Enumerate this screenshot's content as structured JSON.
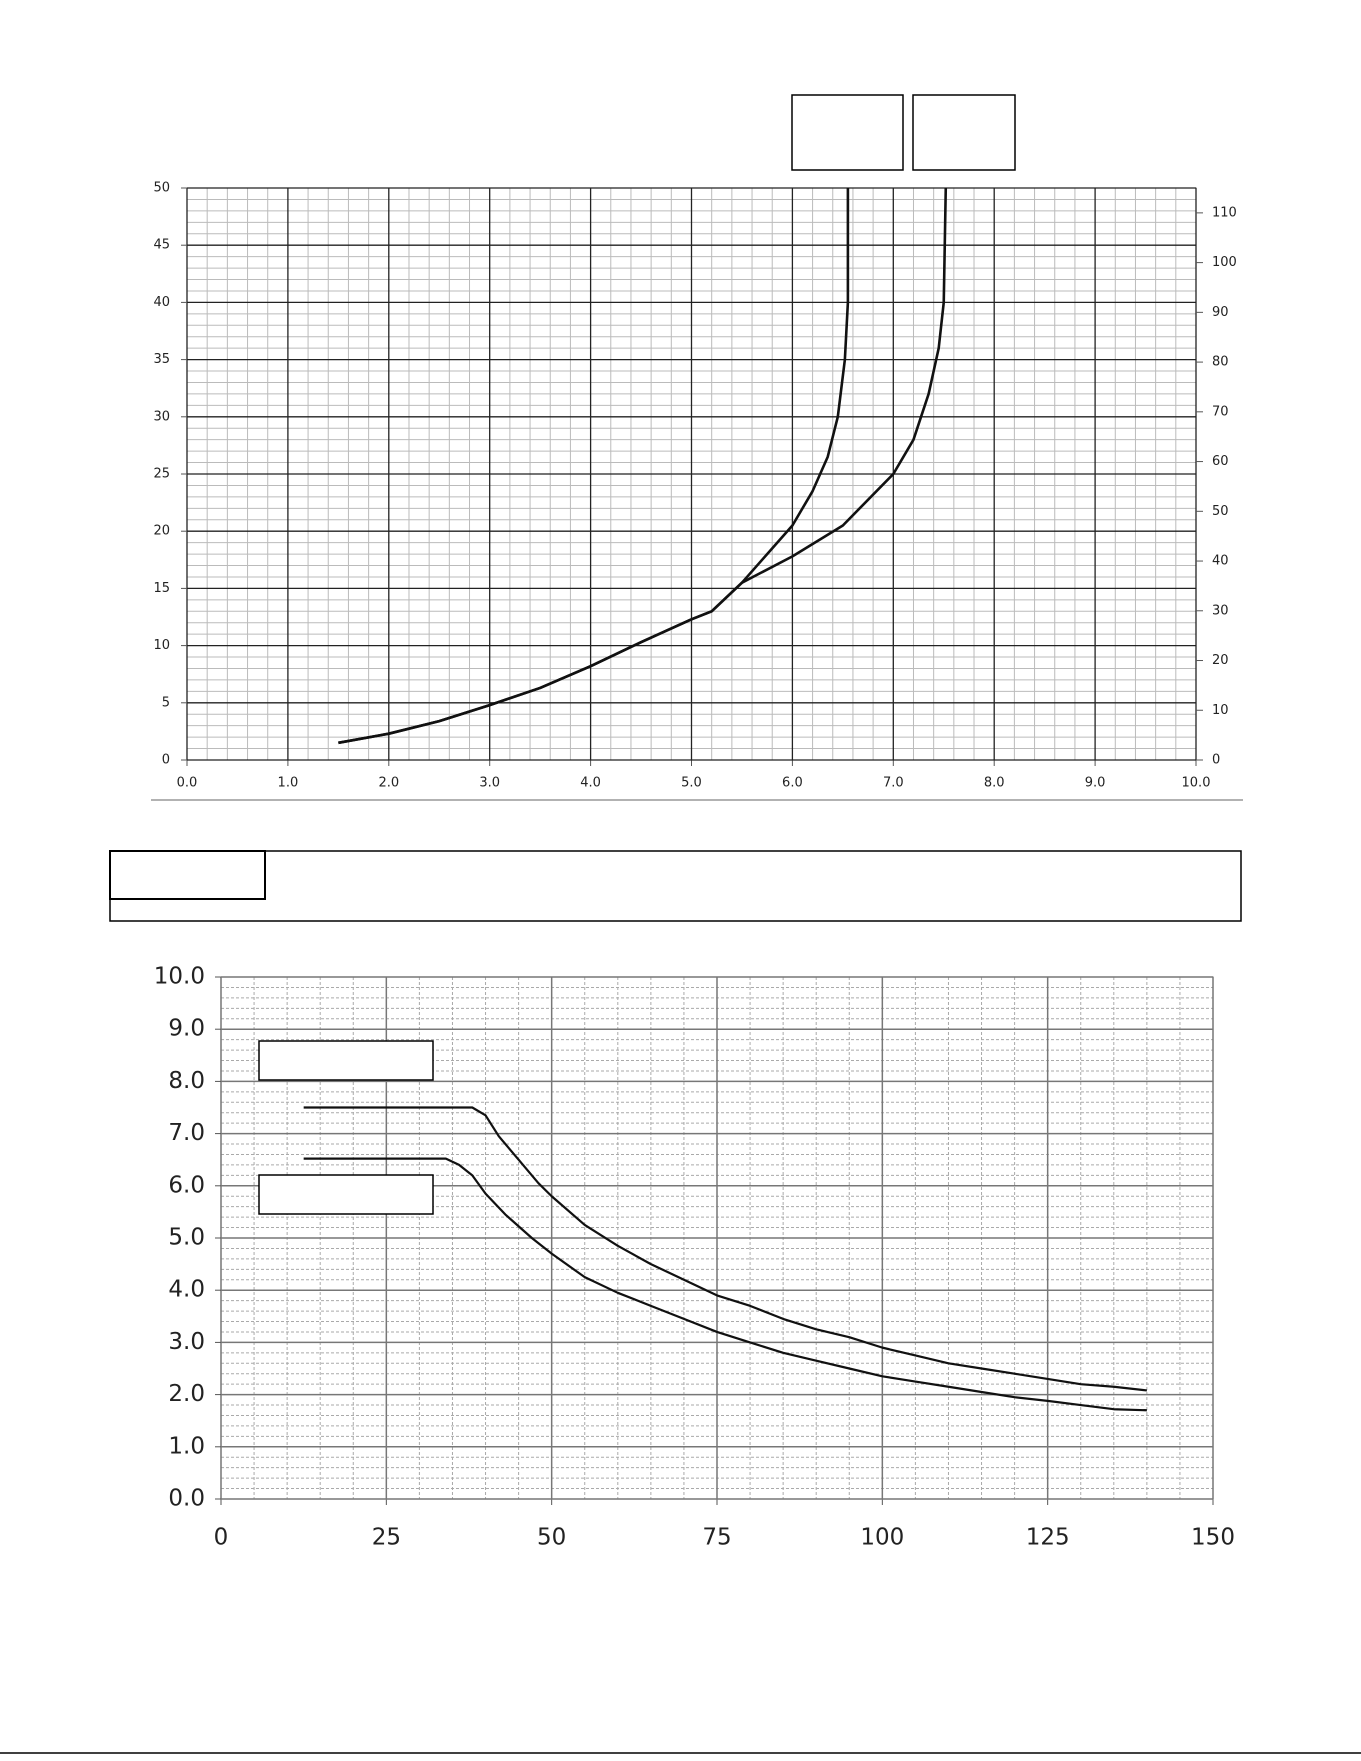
{
  "chart_data": [
    {
      "type": "line",
      "xlim": [
        0,
        10
      ],
      "xticks": [
        {
          "value": 0,
          "label": "0.0"
        },
        {
          "value": 1,
          "label": "1.0"
        },
        {
          "value": 2,
          "label": "2.0"
        },
        {
          "value": 3,
          "label": "3.0"
        },
        {
          "value": 4,
          "label": "4.0"
        },
        {
          "value": 5,
          "label": "5.0"
        },
        {
          "value": 6,
          "label": "6.0"
        },
        {
          "value": 7,
          "label": "7.0"
        },
        {
          "value": 8,
          "label": "8.0"
        },
        {
          "value": 9,
          "label": "9.0"
        },
        {
          "value": 10,
          "label": "10.0"
        }
      ],
      "ylim": [
        0,
        50
      ],
      "yticks": [
        0,
        5,
        10,
        15,
        20,
        25,
        30,
        35,
        40,
        45,
        50
      ],
      "y2lim": [
        0,
        115
      ],
      "y2ticks": [
        0,
        10,
        20,
        30,
        40,
        50,
        60,
        70,
        80,
        90,
        100,
        110
      ],
      "grid": true,
      "series": [
        {
          "color": "#111111",
          "x": [
            1.5,
            2.0,
            2.5,
            3.0,
            3.5,
            4.0,
            4.5,
            5.0,
            5.2,
            5.5,
            5.8,
            6.0,
            6.2,
            6.35,
            6.45,
            6.52,
            6.55,
            6.55
          ],
          "values": [
            1.5,
            2.3,
            3.4,
            4.8,
            6.3,
            8.2,
            10.3,
            12.3,
            13.0,
            15.5,
            18.5,
            20.5,
            23.5,
            26.5,
            30,
            35,
            40,
            50
          ]
        },
        {
          "color": "#111111",
          "x": [
            1.5,
            2.0,
            2.5,
            3.0,
            3.5,
            4.0,
            4.5,
            5.0,
            5.2,
            5.5,
            6.0,
            6.5,
            7.0,
            7.2,
            7.35,
            7.45,
            7.5,
            7.52
          ],
          "values": [
            1.5,
            2.3,
            3.4,
            4.8,
            6.3,
            8.2,
            10.3,
            12.3,
            13.0,
            15.5,
            17.8,
            20.5,
            25,
            28,
            32,
            36,
            40,
            50
          ]
        }
      ]
    },
    {
      "type": "line",
      "xlim": [
        0,
        150
      ],
      "xticks": [
        0,
        25,
        50,
        75,
        100,
        125,
        150
      ],
      "ylim": [
        0,
        10
      ],
      "yticks": [
        {
          "value": 0,
          "label": "0.0"
        },
        {
          "value": 1,
          "label": "1.0"
        },
        {
          "value": 2,
          "label": "2.0"
        },
        {
          "value": 3,
          "label": "3.0"
        },
        {
          "value": 4,
          "label": "4.0"
        },
        {
          "value": 5,
          "label": "5.0"
        },
        {
          "value": 6,
          "label": "6.0"
        },
        {
          "value": 7,
          "label": "7.0"
        },
        {
          "value": 8,
          "label": "8.0"
        },
        {
          "value": 9,
          "label": "9.0"
        },
        {
          "value": 10,
          "label": "10.0"
        }
      ],
      "grid": true,
      "series": [
        {
          "color": "#111111",
          "x": [
            12.5,
            38,
            40,
            42,
            45,
            48,
            50,
            55,
            60,
            65,
            70,
            75,
            80,
            85,
            90,
            95,
            100,
            105,
            110,
            115,
            120,
            125,
            130,
            135,
            140
          ],
          "values": [
            7.5,
            7.5,
            7.35,
            6.95,
            6.5,
            6.05,
            5.8,
            5.25,
            4.85,
            4.5,
            4.2,
            3.9,
            3.7,
            3.45,
            3.25,
            3.1,
            2.9,
            2.75,
            2.6,
            2.5,
            2.4,
            2.3,
            2.2,
            2.15,
            2.08
          ]
        },
        {
          "color": "#111111",
          "x": [
            12.5,
            34,
            36,
            38,
            40,
            43,
            47,
            50,
            55,
            60,
            65,
            70,
            75,
            80,
            85,
            90,
            95,
            100,
            105,
            110,
            115,
            120,
            125,
            130,
            135,
            140
          ],
          "values": [
            6.52,
            6.52,
            6.4,
            6.2,
            5.85,
            5.45,
            5.0,
            4.7,
            4.25,
            3.95,
            3.7,
            3.45,
            3.2,
            3.0,
            2.8,
            2.65,
            2.5,
            2.35,
            2.25,
            2.15,
            2.05,
            1.95,
            1.88,
            1.8,
            1.72,
            1.7
          ]
        }
      ]
    }
  ]
}
